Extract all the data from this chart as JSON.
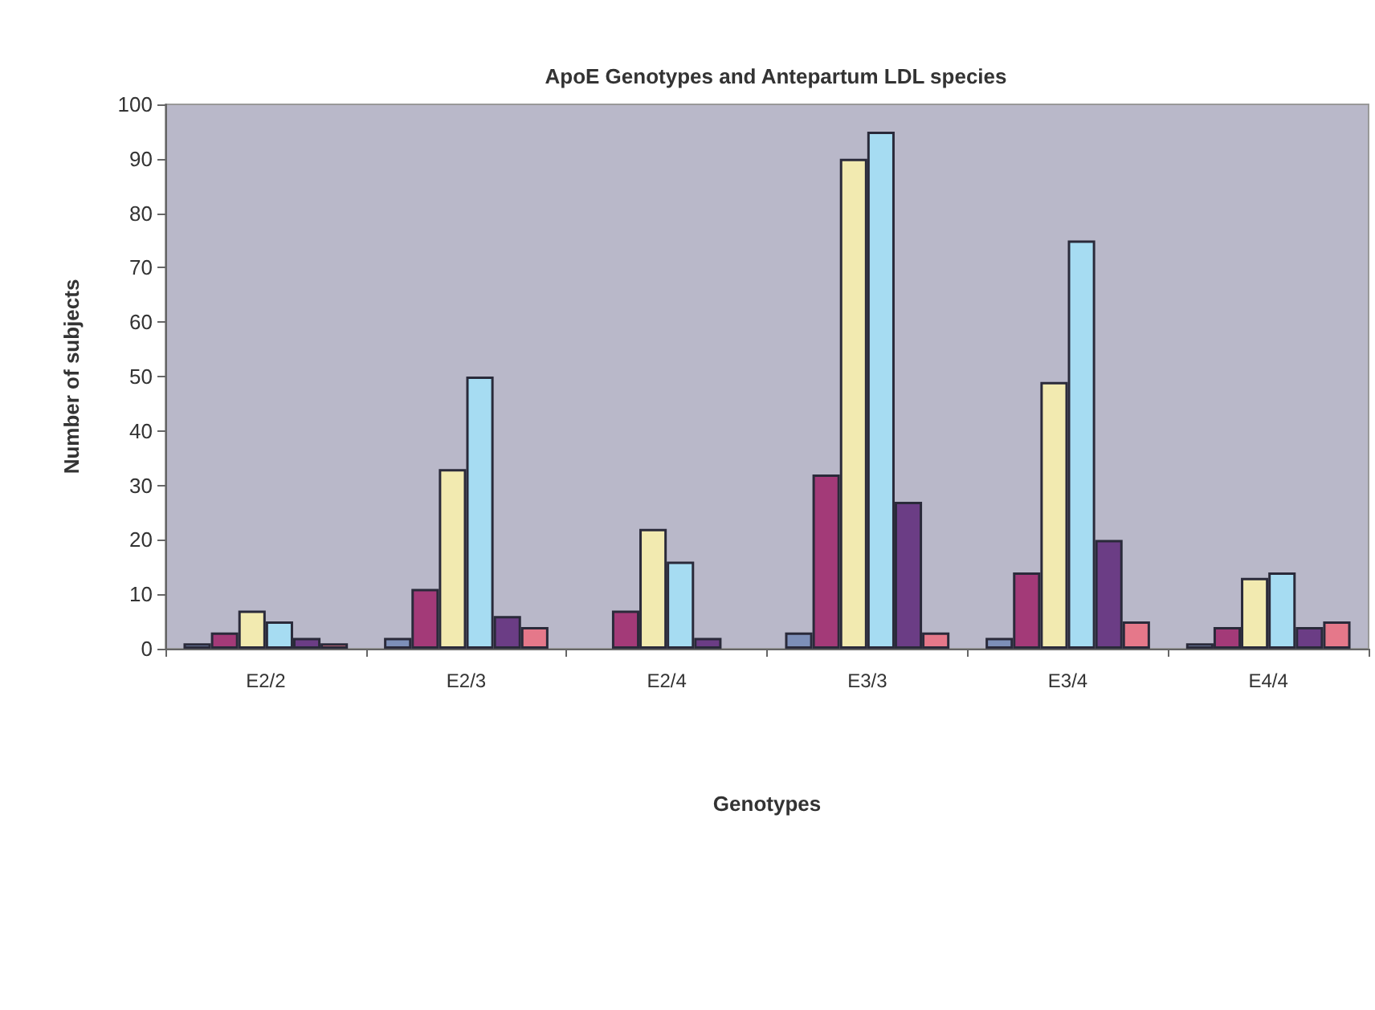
{
  "chart_data": {
    "type": "bar",
    "title": "ApoE Genotypes and Antepartum LDL species",
    "xlabel": "Genotypes",
    "ylabel": "Number of subjects",
    "categories": [
      "E2/2",
      "E2/3",
      "E2/4",
      "E3/3",
      "E3/4",
      "E4/4"
    ],
    "series": [
      {
        "color": "#7d8fb8",
        "values": [
          1,
          2,
          null,
          3,
          2,
          1
        ]
      },
      {
        "color": "#a33a78",
        "values": [
          3,
          11,
          7,
          32,
          14,
          4
        ]
      },
      {
        "color": "#f2eab0",
        "values": [
          7,
          33,
          22,
          90,
          49,
          13
        ]
      },
      {
        "color": "#a6dcf2",
        "values": [
          5,
          50,
          16,
          95,
          75,
          14
        ]
      },
      {
        "color": "#6b3d85",
        "values": [
          2,
          6,
          2,
          27,
          20,
          4
        ]
      },
      {
        "color": "#e5788a",
        "values": [
          1,
          4,
          null,
          3,
          5,
          5
        ]
      }
    ],
    "ylim": [
      0,
      100
    ],
    "yticks": [
      0,
      10,
      20,
      30,
      40,
      50,
      60,
      70,
      80,
      90,
      100
    ],
    "grid": false,
    "legend": false
  }
}
